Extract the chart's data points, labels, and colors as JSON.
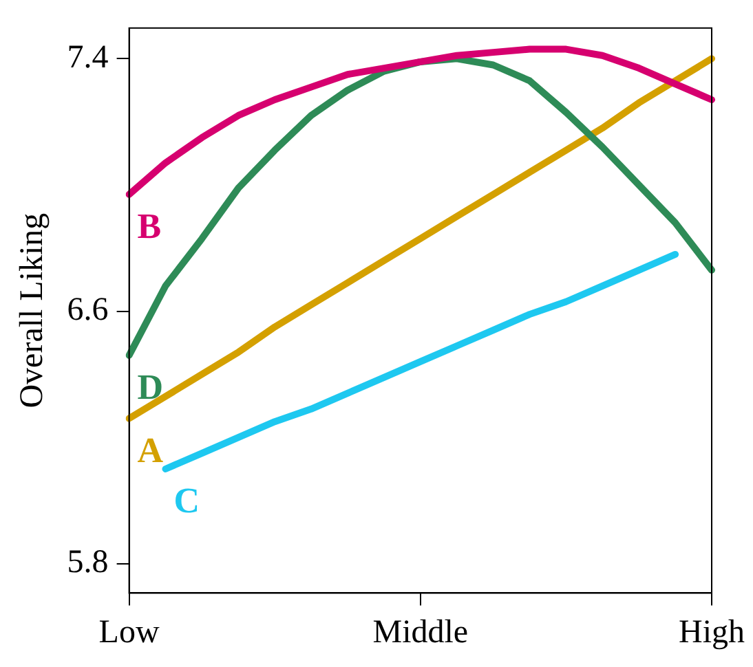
{
  "chart_data": {
    "type": "line",
    "ylabel": "Overall Liking",
    "ylim": [
      5.707,
      7.497
    ],
    "categories": [
      "Low",
      null,
      null,
      null,
      null,
      null,
      null,
      null,
      "Middle",
      null,
      null,
      null,
      null,
      null,
      null,
      null,
      "High"
    ],
    "yticks": [
      5.8,
      6.6,
      7.4
    ],
    "grid": false,
    "legend": false,
    "marker": "none",
    "line_style": "solid",
    "series": [
      {
        "name": "B",
        "color": "#d6006f",
        "values": [
          6.97,
          7.07,
          7.15,
          7.22,
          7.27,
          7.31,
          7.35,
          7.37,
          7.39,
          7.41,
          7.42,
          7.43,
          7.43,
          7.41,
          7.37,
          7.32,
          7.27
        ]
      },
      {
        "name": "D",
        "color": "#2e8b57",
        "values": [
          6.46,
          6.68,
          6.83,
          6.99,
          7.11,
          7.22,
          7.3,
          7.36,
          7.39,
          7.4,
          7.38,
          7.33,
          7.23,
          7.12,
          7.0,
          6.88,
          6.73
        ]
      },
      {
        "name": "A",
        "color": "#d4a000",
        "values": [
          6.26,
          6.33,
          6.4,
          6.47,
          6.55,
          6.62,
          6.69,
          6.76,
          6.83,
          6.9,
          6.97,
          7.04,
          7.11,
          7.18,
          7.26,
          7.33,
          7.4
        ]
      },
      {
        "name": "C",
        "color": "#1ec8f0",
        "values": [
          null,
          6.1,
          6.15,
          6.2,
          6.25,
          6.29,
          6.34,
          6.39,
          6.44,
          6.49,
          6.54,
          6.59,
          6.63,
          6.68,
          6.73,
          6.78,
          null
        ]
      }
    ]
  }
}
